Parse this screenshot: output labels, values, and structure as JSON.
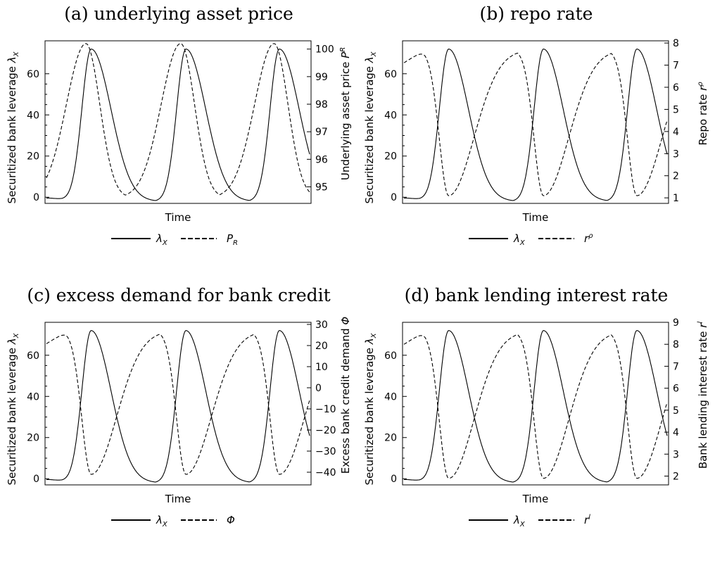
{
  "chart_data": [
    {
      "type": "line",
      "title": "(a) underlying asset price",
      "xlabel": "Time",
      "ylabel_left": "Securitized bank leverage",
      "ylabel_left_sym": "λ",
      "ylabel_left_sub": "X",
      "ylabel_right": "Underlying asset price",
      "ylabel_right_sym": "P",
      "ylabel_right_sub": "R",
      "left_ylim": [
        -3,
        76
      ],
      "left_ticks": [
        "0",
        "20",
        "40",
        "60"
      ],
      "right_ylim": [
        94.4,
        100.3
      ],
      "right_ticks": [
        "95",
        "96",
        "97",
        "98",
        "99",
        "100"
      ],
      "dashed_low": 94.6,
      "dashed_high": 100.2,
      "dashed_phase": "ramp",
      "legend": {
        "solid": "λ",
        "solid_sub": "X",
        "dashed": "P",
        "dashed_sub": "R"
      },
      "series": [
        {
          "name": "λX",
          "style": "solid",
          "axis": "left",
          "values": [
            -1,
            -2,
            0,
            72,
            35,
            -2,
            0,
            72,
            35,
            -2,
            0,
            72,
            32
          ]
        },
        {
          "name": "PR",
          "style": "dashed",
          "axis": "right",
          "values": [
            95.3,
            98.0,
            100.2,
            97.0,
            94.6,
            95.5,
            100.2,
            97.0,
            94.6,
            95.5,
            100.2,
            96.0,
            95.3
          ]
        }
      ]
    },
    {
      "type": "line",
      "title": "(b) repo rate",
      "xlabel": "Time",
      "ylabel_left": "Securitized bank leverage",
      "ylabel_left_sym": "λ",
      "ylabel_left_sub": "X",
      "ylabel_right": "Repo rate",
      "ylabel_right_sym": "r",
      "ylabel_right_sub": "ρ",
      "left_ylim": [
        -3,
        76
      ],
      "left_ticks": [
        "0",
        "20",
        "40",
        "60"
      ],
      "right_ylim": [
        0.75,
        8.1
      ],
      "right_ticks": [
        "1",
        "2",
        "3",
        "4",
        "5",
        "6",
        "7",
        "8"
      ],
      "dashed_low": 1.1,
      "dashed_high": 7.7,
      "dashed_phase": "inverse",
      "legend": {
        "solid": "λ",
        "solid_sub": "X",
        "dashed": "r",
        "dashed_sub": "ρ"
      },
      "series": [
        {
          "name": "λX",
          "style": "solid",
          "axis": "left",
          "values": [
            -1,
            -2,
            0,
            72,
            35,
            -2,
            0,
            72,
            35,
            -2,
            0,
            72,
            32
          ]
        },
        {
          "name": "rρ",
          "style": "dashed",
          "axis": "right",
          "values": [
            6.9,
            7.7,
            1.1,
            4.5,
            7.5,
            7.7,
            1.1,
            4.5,
            7.5,
            7.7,
            1.1,
            3.8,
            4.0
          ]
        }
      ]
    },
    {
      "type": "line",
      "title": "(c) excess demand for bank credit",
      "xlabel": "Time",
      "ylabel_left": "Securitized bank leverage",
      "ylabel_left_sym": "λ",
      "ylabel_left_sub": "X",
      "ylabel_right": "Excess bank credit demand",
      "ylabel_right_sym": "Φ",
      "ylabel_right_sub": "",
      "left_ylim": [
        -3,
        76
      ],
      "left_ticks": [
        "0",
        "20",
        "40",
        "60"
      ],
      "right_ylim": [
        -46,
        31
      ],
      "right_ticks": [
        "−40",
        "−30",
        "−20",
        "−10",
        "0",
        "10",
        "20",
        "30"
      ],
      "dashed_low": -41,
      "dashed_high": 27,
      "dashed_phase": "inverse",
      "legend": {
        "solid": "λ",
        "solid_sub": "X",
        "dashed": "Φ",
        "dashed_sub": ""
      },
      "series": [
        {
          "name": "λX",
          "style": "solid",
          "axis": "left",
          "values": [
            -1,
            -2,
            0,
            72,
            35,
            -2,
            0,
            72,
            35,
            -2,
            0,
            72,
            32
          ]
        },
        {
          "name": "Φ",
          "style": "dashed",
          "axis": "right",
          "values": [
            24,
            27,
            -41,
            -5,
            25,
            27,
            -41,
            -5,
            25,
            27,
            -41,
            -12,
            -10
          ]
        }
      ]
    },
    {
      "type": "line",
      "title": "(d) bank lending interest rate",
      "xlabel": "Time",
      "ylabel_left": "Securitized bank leverage",
      "ylabel_left_sym": "λ",
      "ylabel_left_sub": "X",
      "ylabel_right": "Bank lending interest rate",
      "ylabel_right_sym": "r",
      "ylabel_right_sub": "l",
      "left_ylim": [
        -3,
        76
      ],
      "left_ticks": [
        "0",
        "20",
        "40",
        "60"
      ],
      "right_ylim": [
        1.6,
        9.0
      ],
      "right_ticks": [
        "2",
        "3",
        "4",
        "5",
        "6",
        "7",
        "8",
        "9"
      ],
      "dashed_low": 1.9,
      "dashed_high": 8.6,
      "dashed_phase": "inverse",
      "legend": {
        "solid": "λ",
        "solid_sub": "X",
        "dashed": "r",
        "dashed_sub": "l"
      },
      "series": [
        {
          "name": "λX",
          "style": "solid",
          "axis": "left",
          "values": [
            -1,
            -2,
            0,
            72,
            35,
            -2,
            0,
            72,
            35,
            -2,
            0,
            72,
            32
          ]
        },
        {
          "name": "rl",
          "style": "dashed",
          "axis": "right",
          "values": [
            8.0,
            8.6,
            1.9,
            5.2,
            8.4,
            8.6,
            1.9,
            5.2,
            8.4,
            8.6,
            1.9,
            4.5,
            4.8
          ]
        }
      ]
    }
  ]
}
